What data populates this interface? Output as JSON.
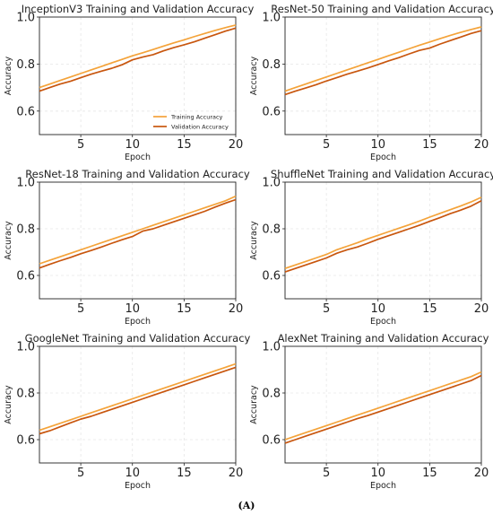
{
  "caption": "(A)",
  "colors": {
    "training": "#F4A33A",
    "validation": "#C8560E",
    "grid": "#E6E6E6"
  },
  "chart_data": [
    {
      "type": "line",
      "title": "InceptionV3 Training and Validation Accuracy",
      "xlabel": "Epoch",
      "ylabel": "Accuracy",
      "xlim": [
        1,
        20
      ],
      "ylim": [
        0.5,
        1.0
      ],
      "xticks": [
        "5",
        "10",
        "15",
        "20"
      ],
      "yticks": [
        "0.6",
        "0.8",
        "1.0"
      ],
      "grid": true,
      "legend": "lower-right",
      "x": [
        1,
        2,
        3,
        4,
        5,
        6,
        7,
        8,
        9,
        10,
        11,
        12,
        13,
        14,
        15,
        16,
        17,
        18,
        19,
        20
      ],
      "series": [
        {
          "name": "Training Accuracy",
          "values": [
            0.7,
            0.715,
            0.73,
            0.745,
            0.76,
            0.775,
            0.79,
            0.805,
            0.82,
            0.835,
            0.848,
            0.862,
            0.876,
            0.89,
            0.903,
            0.917,
            0.93,
            0.943,
            0.955,
            0.966
          ]
        },
        {
          "name": "Validation Accuracy",
          "values": [
            0.685,
            0.7,
            0.715,
            0.727,
            0.742,
            0.757,
            0.77,
            0.782,
            0.797,
            0.818,
            0.83,
            0.84,
            0.856,
            0.87,
            0.882,
            0.895,
            0.91,
            0.925,
            0.94,
            0.953
          ]
        }
      ]
    },
    {
      "type": "line",
      "title": "ResNet-50 Training and Validation Accuracy",
      "xlabel": "Epoch",
      "ylabel": "Accuracy",
      "xlim": [
        1,
        20
      ],
      "ylim": [
        0.5,
        1.0
      ],
      "xticks": [
        "5",
        "10",
        "15",
        "20"
      ],
      "yticks": [
        "0.6",
        "0.8",
        "1.0"
      ],
      "grid": true,
      "x": [
        1,
        2,
        3,
        4,
        5,
        6,
        7,
        8,
        9,
        10,
        11,
        12,
        13,
        14,
        15,
        16,
        17,
        18,
        19,
        20
      ],
      "series": [
        {
          "name": "Training Accuracy",
          "values": [
            0.685,
            0.7,
            0.715,
            0.73,
            0.745,
            0.76,
            0.775,
            0.79,
            0.805,
            0.82,
            0.835,
            0.85,
            0.865,
            0.88,
            0.894,
            0.908,
            0.922,
            0.935,
            0.947,
            0.958
          ]
        },
        {
          "name": "Validation Accuracy",
          "values": [
            0.67,
            0.685,
            0.698,
            0.712,
            0.728,
            0.742,
            0.757,
            0.77,
            0.783,
            0.798,
            0.813,
            0.827,
            0.843,
            0.858,
            0.868,
            0.885,
            0.9,
            0.915,
            0.93,
            0.942
          ]
        }
      ]
    },
    {
      "type": "line",
      "title": "ResNet-18 Training and Validation Accuracy",
      "xlabel": "Epoch",
      "ylabel": "Accuracy",
      "xlim": [
        1,
        20
      ],
      "ylim": [
        0.5,
        1.0
      ],
      "xticks": [
        "5",
        "10",
        "15",
        "20"
      ],
      "yticks": [
        "0.6",
        "0.8",
        "1.0"
      ],
      "grid": true,
      "x": [
        1,
        2,
        3,
        4,
        5,
        6,
        7,
        8,
        9,
        10,
        11,
        12,
        13,
        14,
        15,
        16,
        17,
        18,
        19,
        20
      ],
      "series": [
        {
          "name": "Training Accuracy",
          "values": [
            0.65,
            0.665,
            0.68,
            0.695,
            0.71,
            0.725,
            0.74,
            0.755,
            0.77,
            0.785,
            0.8,
            0.815,
            0.83,
            0.845,
            0.86,
            0.875,
            0.89,
            0.905,
            0.92,
            0.94
          ]
        },
        {
          "name": "Validation Accuracy",
          "values": [
            0.632,
            0.648,
            0.663,
            0.677,
            0.693,
            0.707,
            0.722,
            0.738,
            0.753,
            0.767,
            0.79,
            0.8,
            0.815,
            0.83,
            0.845,
            0.86,
            0.875,
            0.893,
            0.91,
            0.925
          ]
        }
      ]
    },
    {
      "type": "line",
      "title": "ShuffleNet Training and Validation Accuracy",
      "xlabel": "Epoch",
      "ylabel": "Accuracy",
      "xlim": [
        1,
        20
      ],
      "ylim": [
        0.5,
        1.0
      ],
      "xticks": [
        "5",
        "10",
        "15",
        "20"
      ],
      "yticks": [
        "0.6",
        "0.8",
        "1.0"
      ],
      "grid": true,
      "x": [
        1,
        2,
        3,
        4,
        5,
        6,
        7,
        8,
        9,
        10,
        11,
        12,
        13,
        14,
        15,
        16,
        17,
        18,
        19,
        20
      ],
      "series": [
        {
          "name": "Training Accuracy",
          "values": [
            0.63,
            0.645,
            0.66,
            0.675,
            0.69,
            0.71,
            0.725,
            0.74,
            0.757,
            0.772,
            0.787,
            0.802,
            0.817,
            0.833,
            0.85,
            0.866,
            0.882,
            0.898,
            0.915,
            0.935
          ]
        },
        {
          "name": "Validation Accuracy",
          "values": [
            0.615,
            0.63,
            0.645,
            0.66,
            0.675,
            0.695,
            0.71,
            0.722,
            0.738,
            0.755,
            0.77,
            0.785,
            0.8,
            0.815,
            0.832,
            0.848,
            0.865,
            0.88,
            0.897,
            0.92
          ]
        }
      ]
    },
    {
      "type": "line",
      "title": "GoogleNet Training and Validation Accuracy",
      "xlabel": "Epoch",
      "ylabel": "Accuracy",
      "xlim": [
        1,
        20
      ],
      "ylim": [
        0.5,
        1.0
      ],
      "xticks": [
        "5",
        "10",
        "15",
        "20"
      ],
      "yticks": [
        "0.6",
        "0.8",
        "1.0"
      ],
      "grid": true,
      "x": [
        1,
        2,
        3,
        4,
        5,
        6,
        7,
        8,
        9,
        10,
        11,
        12,
        13,
        14,
        15,
        16,
        17,
        18,
        19,
        20
      ],
      "series": [
        {
          "name": "Training Accuracy",
          "values": [
            0.64,
            0.655,
            0.67,
            0.685,
            0.7,
            0.715,
            0.73,
            0.745,
            0.76,
            0.775,
            0.79,
            0.805,
            0.82,
            0.835,
            0.85,
            0.865,
            0.88,
            0.895,
            0.91,
            0.925
          ]
        },
        {
          "name": "Validation Accuracy",
          "values": [
            0.625,
            0.638,
            0.655,
            0.672,
            0.688,
            0.7,
            0.715,
            0.73,
            0.745,
            0.76,
            0.775,
            0.79,
            0.805,
            0.82,
            0.835,
            0.85,
            0.865,
            0.88,
            0.895,
            0.91
          ]
        }
      ]
    },
    {
      "type": "line",
      "title": "AlexNet Training and Validation Accuracy",
      "xlabel": "Epoch",
      "ylabel": "Accuracy",
      "xlim": [
        1,
        20
      ],
      "ylim": [
        0.5,
        1.0
      ],
      "xticks": [
        "5",
        "10",
        "15",
        "20"
      ],
      "yticks": [
        "0.6",
        "0.8",
        "1.0"
      ],
      "grid": true,
      "x": [
        1,
        2,
        3,
        4,
        5,
        6,
        7,
        8,
        9,
        10,
        11,
        12,
        13,
        14,
        15,
        16,
        17,
        18,
        19,
        20
      ],
      "series": [
        {
          "name": "Training Accuracy",
          "values": [
            0.6,
            0.615,
            0.63,
            0.645,
            0.66,
            0.675,
            0.69,
            0.705,
            0.72,
            0.735,
            0.75,
            0.765,
            0.78,
            0.795,
            0.81,
            0.825,
            0.84,
            0.855,
            0.87,
            0.89
          ]
        },
        {
          "name": "Validation Accuracy",
          "values": [
            0.585,
            0.6,
            0.615,
            0.63,
            0.645,
            0.66,
            0.675,
            0.69,
            0.703,
            0.718,
            0.733,
            0.748,
            0.763,
            0.778,
            0.793,
            0.808,
            0.823,
            0.838,
            0.853,
            0.875
          ]
        }
      ]
    }
  ]
}
